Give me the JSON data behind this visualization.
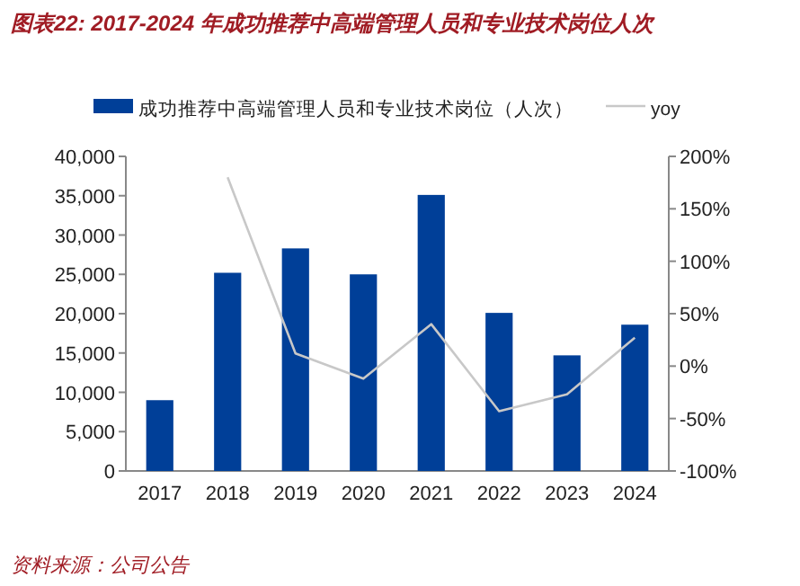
{
  "chart_data": {
    "type": "bar",
    "title": "图表22:  2017-2024 年成功推荐中高端管理人员和专业技术岗位人次",
    "annotations": [
      "资料来源：公司公告"
    ],
    "categories": [
      "2017",
      "2018",
      "2019",
      "2020",
      "2021",
      "2022",
      "2023",
      "2024"
    ],
    "series": [
      {
        "name": "成功推荐中高端管理人员和专业技术岗位（人次）",
        "color": "#003f98",
        "values": [
          9000,
          25200,
          28300,
          25000,
          35100,
          20100,
          14700,
          18600
        ]
      },
      {
        "name": "yoy",
        "type": "line",
        "axis": "y2",
        "color": "#c8c8c8",
        "values": [
          null,
          180,
          12,
          -12,
          40,
          -43,
          -27,
          27
        ]
      }
    ],
    "ylim": [
      0,
      40000
    ],
    "yticks": [
      0,
      {
        "value": 5000,
        "label": "5,000"
      },
      {
        "value": 10000,
        "label": "10,000"
      },
      {
        "value": 15000,
        "label": "15,000"
      },
      {
        "value": 20000,
        "label": "20,000"
      },
      {
        "value": 25000,
        "label": "25,000"
      },
      {
        "value": 30000,
        "label": "30,000"
      },
      {
        "value": 35000,
        "label": "35,000"
      },
      {
        "value": 40000,
        "label": "40,000"
      }
    ],
    "y2lim": [
      -100,
      200
    ],
    "y2ticks": [
      {
        "value": -100,
        "label": "-100%"
      },
      {
        "value": -50,
        "label": "-50%"
      },
      {
        "value": 0,
        "label": "0%"
      },
      {
        "value": 50,
        "label": "50%"
      },
      {
        "value": 100,
        "label": "100%"
      },
      {
        "value": 150,
        "label": "150%"
      },
      {
        "value": 200,
        "label": "200%"
      }
    ],
    "grid": false,
    "legend": "top"
  }
}
